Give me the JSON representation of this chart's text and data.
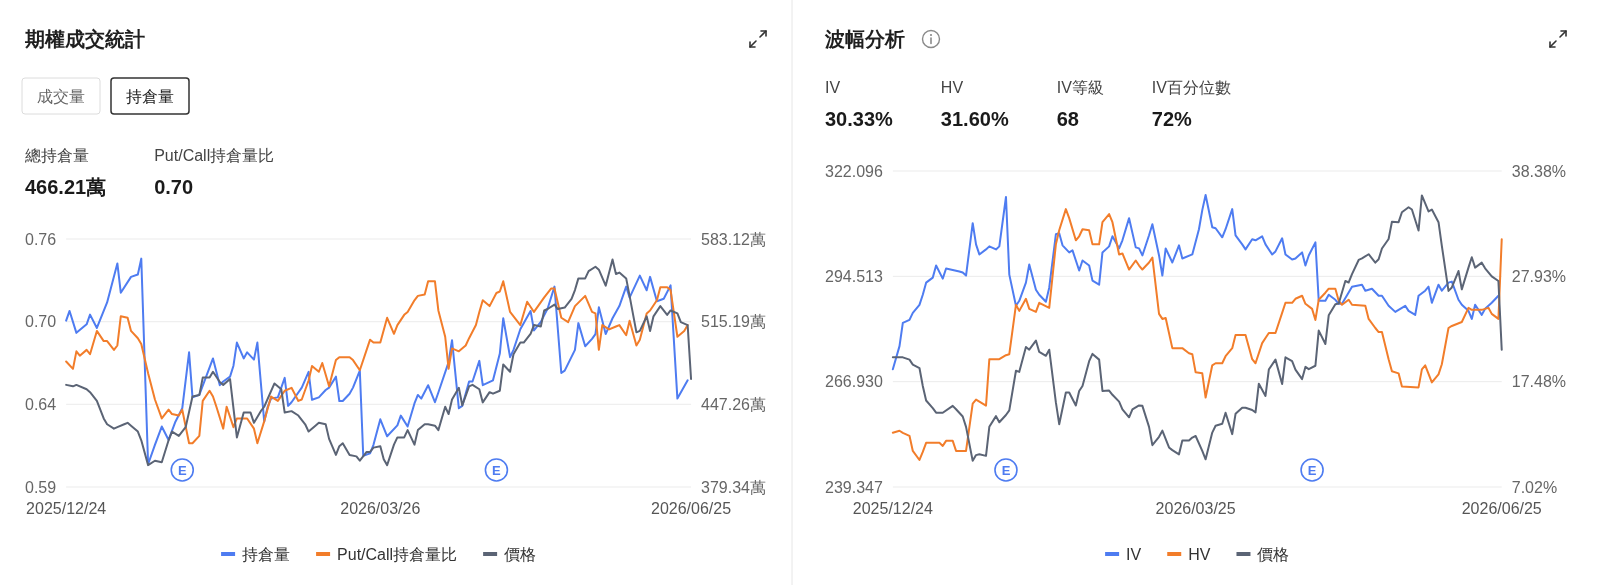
{
  "chart_data": [
    {
      "type": "other",
      "title": "期權成交統計",
      "annotations": [
        "成交量",
        "持倉量"
      ],
      "categories": [
        "總持倉量",
        "Put/Call持倉量比"
      ],
      "value_labels": [
        "466.21萬",
        "0.70"
      ]
    },
    {
      "type": "line",
      "xlim": [
        "2025-12-24",
        "2026-06-25"
      ],
      "xticks": [
        {
          "value": "2025-12-24",
          "label": "2025/12/24"
        },
        {
          "value": "2026-03-26",
          "label": "2026/03/26"
        },
        {
          "value": "2026-06-25",
          "label": "2026/06/25"
        }
      ],
      "ylim": [
        0.587,
        0.757
      ],
      "yticks": [
        {
          "value": 0.587,
          "label": "0.59"
        },
        {
          "value": 0.6437,
          "label": "0.64"
        },
        {
          "value": 0.7003,
          "label": "0.70"
        },
        {
          "value": 0.757,
          "label": "0.76"
        }
      ],
      "y2lim": [
        379.34,
        583.12
      ],
      "y2ticks": [
        {
          "value": 379.34,
          "label": "379.34萬"
        },
        {
          "value": 447.26,
          "label": "447.26萬"
        },
        {
          "value": 515.19,
          "label": "515.19萬"
        },
        {
          "value": 583.12,
          "label": "583.12萬"
        }
      ],
      "grid": "y",
      "legend": "bottom",
      "annotations": [
        {
          "text": "E",
          "x": "2026-01-27"
        },
        {
          "text": "E",
          "x": "2026-04-29"
        }
      ],
      "series": [
        {
          "name": "持倉量",
          "color": "#4e7cf1",
          "axis": "y2",
          "x": [
            "2025-12-24",
            "2025-12-25",
            "2025-12-27",
            "2025-12-30",
            "2025-12-31",
            "2026-01-02",
            "2026-01-05",
            "2026-01-08",
            "2026-01-09",
            "2026-01-12",
            "2026-01-14",
            "2026-01-15",
            "2026-01-17",
            "2026-01-19",
            "2026-01-21",
            "2026-01-23",
            "2026-01-25",
            "2026-01-27",
            "2026-01-29",
            "2026-01-30",
            "2026-02-01",
            "2026-02-05",
            "2026-02-07",
            "2026-02-08",
            "2026-02-10",
            "2026-02-11",
            "2026-02-12",
            "2026-02-14",
            "2026-02-15",
            "2026-02-17",
            "2026-02-18",
            "2026-02-20",
            "2026-02-21",
            "2026-02-22",
            "2026-02-24",
            "2026-02-26",
            "2026-02-27",
            "2026-02-28",
            "2026-03-03",
            "2026-03-05",
            "2026-03-06",
            "2026-03-08",
            "2026-03-10",
            "2026-03-11",
            "2026-03-13",
            "2026-03-14",
            "2026-03-15",
            "2026-03-17",
            "2026-03-18",
            "2026-03-20",
            "2026-03-21",
            "2026-03-23",
            "2026-03-24",
            "2026-03-26",
            "2026-03-28",
            "2026-03-31",
            "2026-04-01",
            "2026-04-03",
            "2026-04-05",
            "2026-04-06",
            "2026-04-07",
            "2026-04-09",
            "2026-04-11",
            "2026-04-12",
            "2026-04-15",
            "2026-04-16",
            "2026-04-18",
            "2026-04-19",
            "2026-04-21",
            "2026-04-22",
            "2026-04-24",
            "2026-04-25",
            "2026-04-28",
            "2026-04-30",
            "2026-05-01",
            "2026-05-03",
            "2026-05-04",
            "2026-05-06",
            "2026-05-09",
            "2026-05-10",
            "2026-05-12",
            "2026-05-14",
            "2026-05-16",
            "2026-05-18",
            "2026-05-19",
            "2026-05-22",
            "2026-05-23",
            "2026-05-25",
            "2026-05-27",
            "2026-05-28",
            "2026-05-29",
            "2026-05-31",
            "2026-06-02",
            "2026-06-04",
            "2026-06-06",
            "2026-06-07",
            "2026-06-10",
            "2026-06-12",
            "2026-06-13",
            "2026-06-15",
            "2026-06-17",
            "2026-06-19",
            "2026-06-21",
            "2026-06-24"
          ],
          "values": [
            516,
            524,
            506,
            513,
            521,
            510,
            531,
            563,
            539,
            552,
            554,
            567,
            398,
            414,
            429,
            418,
            433,
            444,
            490,
            453,
            455,
            485,
            463,
            466,
            470,
            479,
            498,
            485,
            490,
            484,
            498,
            433,
            445,
            452,
            453,
            469,
            446,
            449,
            461,
            474,
            451,
            453,
            459,
            461,
            470,
            450,
            450,
            456,
            461,
            475,
            405,
            407,
            414,
            435,
            421,
            430,
            438,
            429,
            448,
            455,
            452,
            463,
            449,
            457,
            482,
            500,
            444,
            446,
            466,
            466,
            483,
            463,
            467,
            489,
            518,
            486,
            492,
            509,
            524,
            508,
            515,
            526,
            544,
            473,
            475,
            492,
            514,
            495,
            501,
            505,
            527,
            505,
            518,
            528,
            544,
            535,
            553,
            541,
            552,
            532,
            534,
            545,
            452,
            467
          ]
        },
        {
          "name": "Put/Call持倉量比",
          "color": "#f27d2a",
          "x": [
            "2025-12-24",
            "2025-12-26",
            "2025-12-27",
            "2025-12-28",
            "2025-12-30",
            "2025-12-31",
            "2026-01-02",
            "2026-01-04",
            "2026-01-05",
            "2026-01-07",
            "2026-01-08",
            "2026-01-09",
            "2026-01-11",
            "2026-01-12",
            "2026-01-14",
            "2026-01-15",
            "2026-01-17",
            "2026-01-19",
            "2026-01-21",
            "2026-01-23",
            "2026-01-24",
            "2026-01-26",
            "2026-01-27",
            "2026-01-29",
            "2026-01-30",
            "2026-02-01",
            "2026-02-02",
            "2026-02-04",
            "2026-02-05",
            "2026-02-06",
            "2026-02-08",
            "2026-02-09",
            "2026-02-11",
            "2026-02-12",
            "2026-02-14",
            "2026-02-15",
            "2026-02-17",
            "2026-02-18",
            "2026-02-20",
            "2026-02-22",
            "2026-02-24",
            "2026-02-26",
            "2026-02-28",
            "2026-03-02",
            "2026-03-03",
            "2026-03-05",
            "2026-03-06",
            "2026-03-08",
            "2026-03-09",
            "2026-03-11",
            "2026-03-13",
            "2026-03-14",
            "2026-03-17",
            "2026-03-18",
            "2026-03-20",
            "2026-03-23",
            "2026-03-24",
            "2026-03-26",
            "2026-03-28",
            "2026-03-30",
            "2026-03-31",
            "2026-04-02",
            "2026-04-03",
            "2026-04-05",
            "2026-04-06",
            "2026-04-08",
            "2026-04-09",
            "2026-04-11",
            "2026-04-12",
            "2026-04-14",
            "2026-04-15",
            "2026-04-16",
            "2026-04-18",
            "2026-04-20",
            "2026-04-21",
            "2026-04-23",
            "2026-04-24",
            "2026-04-25",
            "2026-04-27",
            "2026-04-29",
            "2026-04-30",
            "2026-05-01",
            "2026-05-03",
            "2026-05-06",
            "2026-05-08",
            "2026-05-10",
            "2026-05-13",
            "2026-05-15",
            "2026-05-16",
            "2026-05-18",
            "2026-05-20",
            "2026-05-22",
            "2026-05-25",
            "2026-05-27",
            "2026-05-28",
            "2026-05-29",
            "2026-05-30",
            "2026-06-01",
            "2026-06-03",
            "2026-06-04",
            "2026-06-06",
            "2026-06-07",
            "2026-06-09",
            "2026-06-10",
            "2026-06-12",
            "2026-06-13",
            "2026-06-15",
            "2026-06-16",
            "2026-06-18",
            "2026-06-19",
            "2026-06-21",
            "2026-06-23",
            "2026-06-24"
          ],
          "values": [
            0.673,
            0.668,
            0.68,
            0.677,
            0.681,
            0.678,
            0.694,
            0.687,
            0.687,
            0.681,
            0.684,
            0.704,
            0.703,
            0.694,
            0.689,
            0.685,
            0.665,
            0.647,
            0.634,
            0.64,
            0.637,
            0.636,
            0.64,
            0.617,
            0.617,
            0.622,
            0.646,
            0.653,
            0.649,
            0.642,
            0.627,
            0.642,
            0.628,
            0.634,
            0.634,
            0.634,
            0.627,
            0.617,
            0.632,
            0.649,
            0.646,
            0.653,
            0.655,
            0.646,
            0.647,
            0.66,
            0.67,
            0.666,
            0.672,
            0.656,
            0.674,
            0.676,
            0.676,
            0.674,
            0.667,
            0.688,
            0.686,
            0.686,
            0.703,
            0.692,
            0.698,
            0.705,
            0.707,
            0.715,
            0.718,
            0.719,
            0.728,
            0.728,
            0.708,
            0.69,
            0.668,
            0.682,
            0.68,
            0.684,
            0.689,
            0.698,
            0.707,
            0.715,
            0.711,
            0.72,
            0.721,
            0.728,
            0.707,
            0.698,
            0.714,
            0.707,
            0.717,
            0.723,
            0.723,
            0.703,
            0.7,
            0.711,
            0.718,
            0.707,
            0.706,
            0.681,
            0.698,
            0.695,
            0.697,
            0.698,
            0.691,
            0.701,
            0.684,
            0.688,
            0.706,
            0.708,
            0.715,
            0.724,
            0.724,
            0.722,
            0.69,
            0.694,
            0.698
          ]
        },
        {
          "name": "價格",
          "color": "#5b6475",
          "x": [
            "2025-12-24",
            "2025-12-26",
            "2025-12-27",
            "2025-12-30",
            "2025-12-31",
            "2026-01-02",
            "2026-01-04",
            "2026-01-05",
            "2026-01-07",
            "2026-01-08",
            "2026-01-10",
            "2026-01-11",
            "2026-01-12",
            "2026-01-14",
            "2026-01-15",
            "2026-01-17",
            "2026-01-19",
            "2026-01-21",
            "2026-01-23",
            "2026-01-24",
            "2026-01-26",
            "2026-01-28",
            "2026-01-30",
            "2026-02-01",
            "2026-02-02",
            "2026-02-04",
            "2026-02-05",
            "2026-02-07",
            "2026-02-08",
            "2026-02-10",
            "2026-02-12",
            "2026-02-14",
            "2026-02-16",
            "2026-02-17",
            "2026-02-19",
            "2026-02-20",
            "2026-02-23",
            "2026-02-25",
            "2026-02-26",
            "2026-02-28",
            "2026-03-02",
            "2026-03-04",
            "2026-03-05",
            "2026-03-07",
            "2026-03-08",
            "2026-03-10",
            "2026-03-11",
            "2026-03-13",
            "2026-03-14",
            "2026-03-15",
            "2026-03-17",
            "2026-03-19",
            "2026-03-20",
            "2026-03-22",
            "2026-03-23",
            "2026-03-24",
            "2026-03-26",
            "2026-03-27",
            "2026-03-28",
            "2026-03-30",
            "2026-03-31",
            "2026-04-02",
            "2026-04-03",
            "2026-04-05",
            "2026-04-06",
            "2026-04-08",
            "2026-04-09",
            "2026-04-11",
            "2026-04-12",
            "2026-04-14",
            "2026-04-15",
            "2026-04-16",
            "2026-04-18",
            "2026-04-19",
            "2026-04-21",
            "2026-04-22",
            "2026-04-24",
            "2026-04-25",
            "2026-04-27",
            "2026-04-28",
            "2026-04-30",
            "2026-05-01",
            "2026-05-03",
            "2026-05-04",
            "2026-05-06",
            "2026-05-07",
            "2026-05-09",
            "2026-05-10",
            "2026-05-12",
            "2026-05-13",
            "2026-05-14",
            "2026-05-16",
            "2026-05-17",
            "2026-05-19",
            "2026-05-21",
            "2026-05-22",
            "2026-05-23",
            "2026-05-25",
            "2026-05-26",
            "2026-05-28",
            "2026-05-29",
            "2026-05-31",
            "2026-06-02",
            "2026-06-03",
            "2026-06-04",
            "2026-06-06",
            "2026-06-07",
            "2026-06-09",
            "2026-06-10",
            "2026-06-12",
            "2026-06-13",
            "2026-06-14",
            "2026-06-16",
            "2026-06-18",
            "2026-06-19",
            "2026-06-21",
            "2026-06-22",
            "2026-06-24",
            "2026-06-25"
          ],
          "values": [
            0.657,
            0.656,
            0.657,
            0.654,
            0.652,
            0.646,
            0.634,
            0.63,
            0.627,
            0.628,
            0.63,
            0.631,
            0.629,
            0.625,
            0.619,
            0.602,
            0.605,
            0.604,
            0.619,
            0.625,
            0.622,
            0.628,
            0.649,
            0.65,
            0.662,
            0.662,
            0.666,
            0.659,
            0.657,
            0.661,
            0.621,
            0.638,
            0.638,
            0.631,
            0.639,
            0.642,
            0.658,
            0.654,
            0.638,
            0.639,
            0.636,
            0.63,
            0.625,
            0.629,
            0.631,
            0.63,
            0.62,
            0.609,
            0.615,
            0.617,
            0.609,
            0.608,
            0.605,
            0.611,
            0.611,
            0.614,
            0.615,
            0.606,
            0.602,
            0.616,
            0.621,
            0.621,
            0.626,
            0.616,
            0.626,
            0.63,
            0.63,
            0.629,
            0.626,
            0.642,
            0.637,
            0.647,
            0.655,
            0.643,
            0.656,
            0.657,
            0.654,
            0.645,
            0.652,
            0.651,
            0.653,
            0.671,
            0.666,
            0.678,
            0.686,
            0.686,
            0.692,
            0.698,
            0.697,
            0.708,
            0.709,
            0.712,
            0.709,
            0.71,
            0.716,
            0.722,
            0.73,
            0.73,
            0.735,
            0.738,
            0.736,
            0.725,
            0.743,
            0.733,
            0.734,
            0.73,
            0.718,
            0.693,
            0.694,
            0.704,
            0.694,
            0.704,
            0.711,
            0.705,
            0.708,
            0.706,
            0.7,
            0.698,
            0.661
          ]
        }
      ]
    },
    {
      "type": "other",
      "title": "波幅分析",
      "categories": [
        "IV",
        "HV",
        "IV等級",
        "IV百分位數"
      ],
      "value_labels": [
        "30.33%",
        "31.60%",
        "68",
        "72%"
      ]
    },
    {
      "type": "line",
      "xlim": [
        "2025-12-24",
        "2026-06-25"
      ],
      "xticks": [
        {
          "value": "2025-12-24",
          "label": "2025/12/24"
        },
        {
          "value": "2026-03-25",
          "label": "2026/03/25"
        },
        {
          "value": "2026-06-25",
          "label": "2026/06/25"
        }
      ],
      "ylim": [
        239.347,
        322.096
      ],
      "yticks": [
        239.347,
        {
          "value": 266.93,
          "label": "266.930"
        },
        294.513,
        322.096
      ],
      "y2lim": [
        7.02,
        38.38
      ],
      "y2ticks": [
        {
          "value": 7.02,
          "label": "7.02%"
        },
        {
          "value": 17.48,
          "label": "17.48%"
        },
        {
          "value": 27.93,
          "label": "27.93%"
        },
        {
          "value": 38.38,
          "label": "38.38%"
        }
      ],
      "grid": "y",
      "legend": "bottom",
      "annotations": [
        {
          "text": "E",
          "x": "2026-01-27"
        },
        {
          "text": "E",
          "x": "2026-04-29"
        }
      ],
      "series": [
        {
          "name": "IV",
          "color": "#4e7cf1",
          "axis": "y2",
          "x": [
            "2025-12-24",
            "2025-12-26",
            "2025-12-27",
            "2025-12-29",
            "2025-12-30",
            "2026-01-01",
            "2026-01-02",
            "2026-01-03",
            "2026-01-05",
            "2026-01-06",
            "2026-01-08",
            "2026-01-09",
            "2026-01-13",
            "2026-01-14",
            "2026-01-15",
            "2026-01-17",
            "2026-01-18",
            "2026-01-19",
            "2026-01-21",
            "2026-01-22",
            "2026-01-24",
            "2026-01-25",
            "2026-01-27",
            "2026-01-28",
            "2026-01-30",
            "2026-01-31",
            "2026-02-02",
            "2026-02-03",
            "2026-02-05",
            "2026-02-06",
            "2026-02-08",
            "2026-02-09",
            "2026-02-11",
            "2026-02-12",
            "2026-02-13",
            "2026-02-15",
            "2026-02-16",
            "2026-02-18",
            "2026-02-19",
            "2026-02-21",
            "2026-02-22",
            "2026-02-24",
            "2026-02-25",
            "2026-02-27",
            "2026-02-28",
            "2026-03-02",
            "2026-03-03",
            "2026-03-05",
            "2026-03-07",
            "2026-03-08",
            "2026-03-09",
            "2026-03-11",
            "2026-03-12",
            "2026-03-14",
            "2026-03-15",
            "2026-03-16",
            "2026-03-18",
            "2026-03-20",
            "2026-03-21",
            "2026-03-24",
            "2026-03-26",
            "2026-03-27",
            "2026-03-28",
            "2026-03-30",
            "2026-03-31",
            "2026-04-02",
            "2026-04-03",
            "2026-04-05",
            "2026-04-06",
            "2026-04-08",
            "2026-04-09",
            "2026-04-11",
            "2026-04-12",
            "2026-04-14",
            "2026-04-15",
            "2026-04-17",
            "2026-04-18",
            "2026-04-20",
            "2026-04-21",
            "2026-04-23",
            "2026-04-24",
            "2026-04-26",
            "2026-04-27",
            "2026-04-28",
            "2026-04-30",
            "2026-05-01",
            "2026-05-03",
            "2026-05-04",
            "2026-05-06",
            "2026-05-07",
            "2026-05-08",
            "2026-05-11",
            "2026-05-14",
            "2026-05-15",
            "2026-05-17",
            "2026-05-19",
            "2026-05-20",
            "2026-05-22",
            "2026-05-24",
            "2026-05-27",
            "2026-05-28",
            "2026-05-30",
            "2026-05-31",
            "2026-06-02",
            "2026-06-03",
            "2026-06-04",
            "2026-06-06",
            "2026-06-07",
            "2026-06-09",
            "2026-06-10",
            "2026-06-12",
            "2026-06-13",
            "2026-06-15",
            "2026-06-16",
            "2026-06-17",
            "2026-06-19",
            "2026-06-20",
            "2026-06-22",
            "2026-06-24"
          ],
          "values": [
            18.7,
            21.0,
            23.3,
            23.6,
            24.3,
            25.1,
            26.1,
            27.3,
            27.8,
            29.0,
            27.7,
            28.7,
            28.4,
            28.3,
            28.0,
            33.2,
            31.1,
            30.1,
            30.6,
            30.9,
            30.6,
            30.9,
            35.8,
            28.1,
            25.0,
            25.5,
            27.3,
            29.1,
            26.6,
            26.1,
            25.4,
            26.8,
            32.1,
            32.2,
            31.0,
            30.3,
            30.5,
            28.5,
            29.5,
            29.0,
            27.5,
            27.1,
            30.3,
            30.9,
            31.9,
            30.7,
            31.5,
            33.7,
            30.8,
            30.7,
            30.0,
            32.0,
            33.1,
            30.0,
            28.0,
            30.7,
            29.3,
            31.0,
            29.7,
            30.1,
            32.6,
            34.5,
            36.0,
            32.8,
            32.7,
            31.8,
            32.6,
            34.6,
            32.0,
            31.1,
            30.6,
            31.6,
            31.5,
            31.9,
            31.1,
            30.1,
            30.4,
            31.7,
            30.1,
            29.6,
            29.7,
            30.3,
            29.0,
            30.0,
            31.3,
            25.5,
            25.5,
            26.1,
            25.6,
            25.2,
            25.2,
            26.9,
            27.1,
            26.5,
            26.7,
            26.0,
            26.0,
            25.0,
            24.4,
            25.0,
            24.5,
            24.1,
            26.0,
            26.5,
            26.9,
            25.3,
            27.1,
            26.5,
            27.3,
            27.4,
            25.6,
            25.1,
            24.5,
            23.7,
            25.1,
            24.1,
            24.7,
            25.3,
            26.0
          ]
        },
        {
          "name": "HV",
          "color": "#f27d2a",
          "axis": "y2",
          "x": [
            "2025-12-24",
            "2025-12-26",
            "2025-12-27",
            "2025-12-29",
            "2025-12-30",
            "2026-01-01",
            "2026-01-02",
            "2026-01-03",
            "2026-01-07",
            "2026-01-08",
            "2026-01-09",
            "2026-01-11",
            "2026-01-12",
            "2026-01-15",
            "2026-01-17",
            "2026-01-18",
            "2026-01-21",
            "2026-01-22",
            "2026-01-25",
            "2026-01-27",
            "2026-01-28",
            "2026-01-30",
            "2026-01-31",
            "2026-02-02",
            "2026-02-03",
            "2026-02-05",
            "2026-02-06",
            "2026-02-09",
            "2026-02-11",
            "2026-02-12",
            "2026-02-14",
            "2026-02-15",
            "2026-02-17",
            "2026-02-18",
            "2026-02-19",
            "2026-02-21",
            "2026-02-22",
            "2026-02-24",
            "2026-02-25",
            "2026-02-27",
            "2026-02-28",
            "2026-03-02",
            "2026-03-03",
            "2026-03-05",
            "2026-03-07",
            "2026-03-08",
            "2026-03-09",
            "2026-03-11",
            "2026-03-12",
            "2026-03-14",
            "2026-03-15",
            "2026-03-16",
            "2026-03-18",
            "2026-03-21",
            "2026-03-23",
            "2026-03-24",
            "2026-03-25",
            "2026-03-27",
            "2026-03-28",
            "2026-03-30",
            "2026-03-31",
            "2026-04-02",
            "2026-04-03",
            "2026-04-05",
            "2026-04-06",
            "2026-04-09",
            "2026-04-11",
            "2026-04-12",
            "2026-04-14",
            "2026-04-15",
            "2026-04-16",
            "2026-04-18",
            "2026-04-20",
            "2026-04-21",
            "2026-04-23",
            "2026-04-24",
            "2026-04-26",
            "2026-04-27",
            "2026-04-29",
            "2026-04-30",
            "2026-05-01",
            "2026-05-03",
            "2026-05-04",
            "2026-05-06",
            "2026-05-07",
            "2026-05-08",
            "2026-05-10",
            "2026-05-11",
            "2026-05-15",
            "2026-05-16",
            "2026-05-18",
            "2026-05-19",
            "2026-05-20",
            "2026-05-22",
            "2026-05-23",
            "2026-05-25",
            "2026-05-26",
            "2026-05-31",
            "2026-06-01",
            "2026-06-02",
            "2026-06-04",
            "2026-06-06",
            "2026-06-07",
            "2026-06-09",
            "2026-06-10",
            "2026-06-13",
            "2026-06-15",
            "2026-06-16",
            "2026-06-19",
            "2026-06-21",
            "2026-06-22",
            "2026-06-24",
            "2026-06-25"
          ],
          "values": [
            12.4,
            12.6,
            12.4,
            12.1,
            10.6,
            9.7,
            10.5,
            11.4,
            11.4,
            11.1,
            11.6,
            11.6,
            10.6,
            10.6,
            15.3,
            15.7,
            15.1,
            19.7,
            19.7,
            20.1,
            20.2,
            25.1,
            24.5,
            25.7,
            24.7,
            24.4,
            25.3,
            24.8,
            31.1,
            32.5,
            34.6,
            33.7,
            31.5,
            31.9,
            32.6,
            32.5,
            31.1,
            31.1,
            33.3,
            34.1,
            33.3,
            30.1,
            30.2,
            28.6,
            29.5,
            29.0,
            28.6,
            29.3,
            29.8,
            24.2,
            23.7,
            23.8,
            20.8,
            20.8,
            20.3,
            20.2,
            18.4,
            18.3,
            15.9,
            19.1,
            19.3,
            19.3,
            20.0,
            20.8,
            22.1,
            22.1,
            19.7,
            19.3,
            21.3,
            21.8,
            22.3,
            22.3,
            24.3,
            25.3,
            25.3,
            25.7,
            26.0,
            25.2,
            24.7,
            23.6,
            25.6,
            26.3,
            26.7,
            26.7,
            25.5,
            25.1,
            25.6,
            25.1,
            25.0,
            23.7,
            22.8,
            22.4,
            22.4,
            19.7,
            18.5,
            18.3,
            17.0,
            16.9,
            18.7,
            19.1,
            17.4,
            18.2,
            19.2,
            22.8,
            23.0,
            23.4,
            24.8,
            24.6,
            24.6,
            24.8,
            24.2,
            23.7,
            31.6
          ]
        },
        {
          "name": "價格",
          "color": "#5b6475",
          "x": [
            "2025-12-24",
            "2025-12-27",
            "2025-12-29",
            "2025-12-30",
            "2026-01-01",
            "2026-01-02",
            "2026-01-03",
            "2026-01-05",
            "2026-01-06",
            "2026-01-08",
            "2026-01-11",
            "2026-01-12",
            "2026-01-14",
            "2026-01-15",
            "2026-01-17",
            "2026-01-18",
            "2026-01-19",
            "2026-01-21",
            "2026-01-22",
            "2026-01-24",
            "2026-01-25",
            "2026-01-27",
            "2026-01-28",
            "2026-01-30",
            "2026-01-31",
            "2026-02-02",
            "2026-02-03",
            "2026-02-05",
            "2026-02-06",
            "2026-02-08",
            "2026-02-09",
            "2026-02-11",
            "2026-02-12",
            "2026-02-14",
            "2026-02-15",
            "2026-02-17",
            "2026-02-18",
            "2026-02-19",
            "2026-02-21",
            "2026-02-22",
            "2026-02-24",
            "2026-02-25",
            "2026-02-27",
            "2026-02-28",
            "2026-03-02",
            "2026-03-03",
            "2026-03-05",
            "2026-03-06",
            "2026-03-08",
            "2026-03-09",
            "2026-03-11",
            "2026-03-12",
            "2026-03-14",
            "2026-03-15",
            "2026-03-17",
            "2026-03-18",
            "2026-03-20",
            "2026-03-21",
            "2026-03-23",
            "2026-03-24",
            "2026-03-25",
            "2026-03-27",
            "2026-03-28",
            "2026-03-30",
            "2026-03-31",
            "2026-04-02",
            "2026-04-03",
            "2026-04-05",
            "2026-04-06",
            "2026-04-08",
            "2026-04-09",
            "2026-04-11",
            "2026-04-12",
            "2026-04-13",
            "2026-04-15",
            "2026-04-16",
            "2026-04-18",
            "2026-04-20",
            "2026-04-21",
            "2026-04-23",
            "2026-04-24",
            "2026-04-26",
            "2026-04-27",
            "2026-04-28",
            "2026-04-30",
            "2026-05-01",
            "2026-05-03",
            "2026-05-04",
            "2026-05-06",
            "2026-05-07",
            "2026-05-09",
            "2026-05-10",
            "2026-05-11",
            "2026-05-13",
            "2026-05-14",
            "2026-05-16",
            "2026-05-18",
            "2026-05-19",
            "2026-05-20",
            "2026-05-22",
            "2026-05-23",
            "2026-05-25",
            "2026-05-26",
            "2026-05-28",
            "2026-05-29",
            "2026-05-31",
            "2026-06-01",
            "2026-06-03",
            "2026-06-04",
            "2026-06-06",
            "2026-06-07",
            "2026-06-09",
            "2026-06-10",
            "2026-06-12",
            "2026-06-13",
            "2026-06-15",
            "2026-06-16",
            "2026-06-17",
            "2026-06-19",
            "2026-06-20",
            "2026-06-22",
            "2026-06-24",
            "2026-06-25"
          ],
          "values": [
            273.3,
            273.3,
            272.7,
            271.4,
            270.5,
            265.8,
            262.0,
            260.0,
            258.8,
            258.8,
            260.6,
            259.7,
            257.8,
            255.1,
            246.2,
            247.7,
            247.9,
            247.5,
            255.1,
            257.9,
            256.3,
            258.2,
            259.4,
            269.8,
            269.5,
            276.0,
            275.3,
            277.7,
            274.7,
            273.7,
            275.3,
            261.5,
            255.8,
            264.1,
            264.1,
            260.7,
            264.5,
            265.8,
            272.3,
            274.2,
            272.7,
            264.5,
            264.6,
            263.5,
            261.7,
            259.7,
            257.6,
            259.7,
            260.7,
            260.6,
            255.1,
            250.3,
            252.5,
            254.1,
            249.7,
            249.0,
            247.9,
            251.5,
            251.5,
            252.3,
            252.7,
            248.8,
            246.6,
            253.6,
            255.4,
            255.9,
            258.8,
            253.2,
            258.5,
            260.1,
            260.1,
            259.5,
            258.9,
            266.4,
            263.2,
            270.1,
            272.7,
            266.3,
            273.3,
            272.3,
            270.1,
            267.6,
            270.8,
            270.2,
            271.1,
            280.3,
            276.8,
            284.3,
            287.2,
            287.4,
            293.3,
            292.9,
            295.1,
            298.8,
            299.2,
            300.3,
            298.1,
            299.0,
            301.8,
            304.3,
            308.8,
            308.7,
            311.3,
            312.6,
            312.0,
            306.5,
            315.7,
            311.5,
            312.0,
            308.7,
            302.5,
            290.7,
            291.6,
            295.9,
            291.1,
            296.8,
            299.5,
            296.8,
            298.1,
            296.6,
            294.5,
            293.3,
            275.3
          ]
        }
      ]
    }
  ]
}
